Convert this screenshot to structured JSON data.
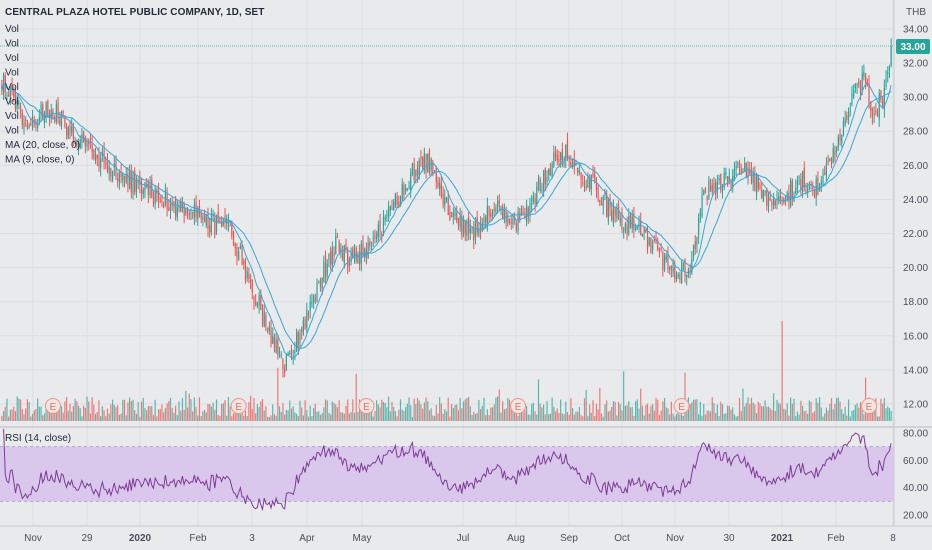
{
  "header": {
    "title": "CENTRAL PLAZA HOTEL PUBLIC COMPANY, 1D, SET",
    "indicator_lines": [
      "Vol",
      "Vol",
      "Vol",
      "Vol",
      "Vol",
      "Vol",
      "Vol",
      "Vol",
      "MA (20, close, 0)",
      "MA (9, close, 0)"
    ]
  },
  "price_axis": {
    "unit": "THB",
    "ticks": [
      "34.00",
      "32.00",
      "30.00",
      "28.00",
      "26.00",
      "24.00",
      "22.00",
      "20.00",
      "18.00",
      "16.00",
      "14.00",
      "12.00"
    ],
    "last_price_label": "33.00"
  },
  "rsi_panel": {
    "label": "RSI (14, close)",
    "ticks": [
      "80.00",
      "60.00",
      "40.00",
      "20.00"
    ],
    "band": [
      30,
      70
    ]
  },
  "x_axis": {
    "labels": [
      "Nov",
      "29",
      "2020",
      "Feb",
      "3",
      "Apr",
      "May",
      "Jul",
      "Aug",
      "Sep",
      "Oct",
      "Nov",
      "30",
      "2021",
      "Feb",
      "8"
    ]
  },
  "earnings_marker_label": "E",
  "colors": {
    "up": "#26a69a",
    "down": "#ef5350",
    "ma": "#3aa6d9",
    "rsi_line": "#7e3b96",
    "rsi_band": "#d9c8ec",
    "last_price_bg": "#26a69a",
    "earnings": "#e8958a"
  },
  "chart_data": {
    "type": "candlestick",
    "title": "CENTRAL PLAZA HOTEL PUBLIC COMPANY, 1D, SET",
    "ylabel": "THB",
    "ylim": [
      11,
      34.6
    ],
    "last_close": 33.0,
    "x_categories": [
      "Nov",
      "29",
      "2020",
      "Feb",
      "3",
      "Apr",
      "May",
      "Jul",
      "Aug",
      "Sep",
      "Oct",
      "Nov",
      "30",
      "2021",
      "Feb",
      "8"
    ],
    "close_path_keypoints": [
      [
        0,
        31.0
      ],
      [
        15,
        28.5
      ],
      [
        30,
        29.3
      ],
      [
        45,
        27.6
      ],
      [
        55,
        26.5
      ],
      [
        75,
        25.0
      ],
      [
        100,
        23.8
      ],
      [
        120,
        22.8
      ],
      [
        135,
        22.0
      ],
      [
        145,
        19.3
      ],
      [
        158,
        16.0
      ],
      [
        165,
        14.0
      ],
      [
        172,
        15.5
      ],
      [
        183,
        18.2
      ],
      [
        195,
        21.3
      ],
      [
        205,
        20.5
      ],
      [
        215,
        21.0
      ],
      [
        228,
        23.2
      ],
      [
        240,
        25.5
      ],
      [
        250,
        26.3
      ],
      [
        262,
        23.2
      ],
      [
        275,
        22.0
      ],
      [
        290,
        23.5
      ],
      [
        300,
        22.4
      ],
      [
        312,
        24.0
      ],
      [
        322,
        26.0
      ],
      [
        330,
        26.7
      ],
      [
        345,
        25.0
      ],
      [
        360,
        22.8
      ],
      [
        375,
        22.3
      ],
      [
        385,
        20.8
      ],
      [
        395,
        19.7
      ],
      [
        405,
        20.2
      ],
      [
        412,
        24.5
      ],
      [
        425,
        25.0
      ],
      [
        435,
        26.0
      ],
      [
        445,
        24.3
      ],
      [
        455,
        24.0
      ],
      [
        470,
        25.0
      ],
      [
        478,
        24.8
      ],
      [
        486,
        26.0
      ],
      [
        494,
        28.2
      ],
      [
        500,
        30.5
      ],
      [
        506,
        31.0
      ],
      [
        512,
        29.2
      ],
      [
        518,
        30.0
      ],
      [
        522,
        33.0
      ]
    ],
    "moving_averages": [
      {
        "name": "MA (20, close, 0)",
        "period": 20
      },
      {
        "name": "MA (9, close, 0)",
        "period": 9
      }
    ],
    "volume": {
      "spike_indices": [
        162,
        208,
        315,
        365,
        401,
        458,
        507
      ]
    },
    "earnings_indices": [
      30,
      139,
      214,
      303,
      399,
      509
    ],
    "rsi": {
      "period": 14,
      "ylim": [
        15,
        85
      ]
    }
  }
}
